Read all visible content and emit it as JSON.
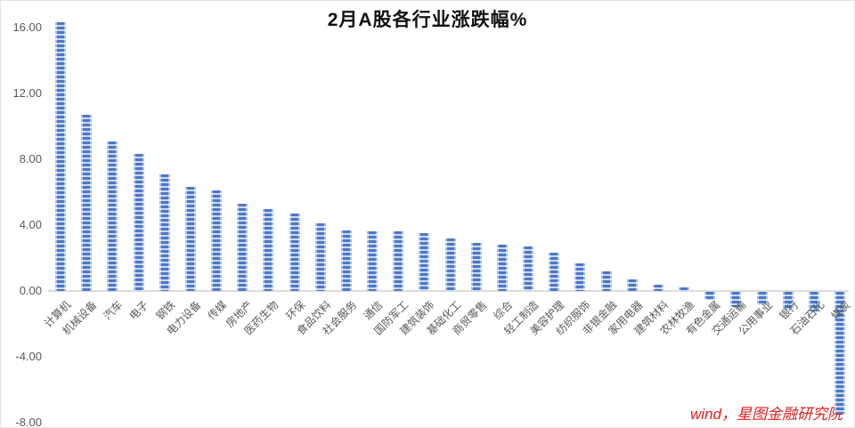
{
  "title": "2月A股各行业涨跌幅%",
  "watermark": {
    "text": "wind，星图金融研究院",
    "color": "#e02020"
  },
  "chart_data": {
    "type": "bar",
    "title": "2月A股各行业涨跌幅%",
    "categories": [
      "计算机",
      "机械设备",
      "汽车",
      "电子",
      "钢铁",
      "电力设备",
      "传媒",
      "房地产",
      "医药生物",
      "环保",
      "食品饮料",
      "社会服务",
      "通信",
      "国防军工",
      "建筑装饰",
      "基础化工",
      "商贸零售",
      "综合",
      "轻工制造",
      "美容护理",
      "纺织服饰",
      "非银金融",
      "家用电器",
      "建筑材料",
      "农林牧渔",
      "有色金属",
      "交通运输",
      "公用事业",
      "银行",
      "石油石化",
      "煤炭"
    ],
    "values": [
      16.3,
      10.7,
      9.1,
      8.3,
      7.1,
      6.3,
      6.1,
      5.3,
      5.0,
      4.7,
      4.1,
      3.7,
      3.6,
      3.6,
      3.5,
      3.2,
      2.9,
      2.8,
      2.7,
      2.3,
      1.7,
      1.2,
      0.7,
      0.4,
      0.2,
      -0.5,
      -0.9,
      -0.8,
      -1.1,
      -1.2,
      -7.4
    ],
    "xlabel": "",
    "ylabel": "",
    "ylim": [
      -8,
      16.5
    ],
    "y_ticks": [
      16,
      12,
      8,
      4,
      0,
      -4,
      -8
    ],
    "y_tick_labels": [
      "16.00",
      "12.00",
      "8.00",
      "4.00",
      "0.00",
      "-4.00",
      "-8.00"
    ],
    "grid": false,
    "legend": null,
    "bar_stripe_dark": "#4a78cc",
    "bar_stripe_light": "#ccd9f1",
    "axis_line_color": "#dcdcdc",
    "tick_text_color": "#595959",
    "title_color": "#111111"
  }
}
